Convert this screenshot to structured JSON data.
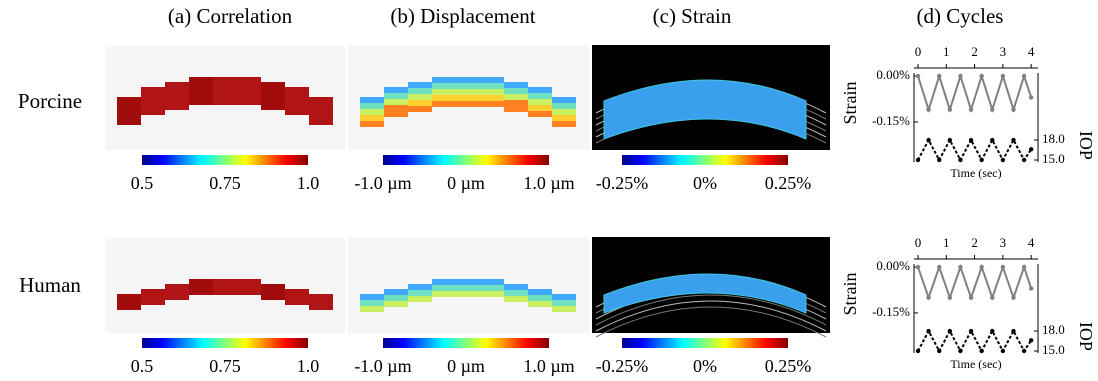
{
  "columns": [
    "(a) Correlation",
    "(b) Displacement",
    "(c) Strain",
    "(d) Cycles"
  ],
  "rows": [
    "Porcine",
    "Human"
  ],
  "colorbars": [
    {
      "labels": [
        "0.5",
        "0.75",
        "1.0"
      ]
    },
    {
      "labels": [
        "-1.0 µm",
        "0 µm",
        "1.0 µm"
      ]
    },
    {
      "labels": [
        "-0.25%",
        "0%",
        "0.25%"
      ]
    }
  ],
  "cycles": {
    "y_label": "Strain",
    "y2_label": "IOP",
    "x_label": "Time (sec)",
    "xlim": [
      0,
      4.1
    ],
    "xticks": [
      0,
      1,
      2,
      3,
      4
    ],
    "ylim": [
      -0.16,
      0.01
    ],
    "yticks": [
      {
        "value": 0,
        "label": "0.00%"
      },
      {
        "value": -0.15,
        "label": "-0.15%"
      }
    ],
    "y2lim": [
      14.7,
      18.5
    ],
    "y2ticks": [
      {
        "value": 18,
        "label": "18.0"
      },
      {
        "value": 15,
        "label": "15.0"
      }
    ],
    "strain_color": "#808080",
    "iop_color": "#000000",
    "plots": [
      {
        "x": [
          0,
          0.375,
          0.75,
          1.125,
          1.5,
          1.875,
          2.25,
          2.625,
          3.0,
          3.375,
          3.75,
          4.0
        ],
        "strain": [
          0,
          -0.11,
          0,
          -0.11,
          0,
          -0.11,
          0,
          -0.11,
          0,
          -0.11,
          0,
          -0.07
        ],
        "iop": [
          15,
          18,
          15,
          18,
          15,
          18,
          15,
          18,
          15,
          18,
          15,
          16.6
        ]
      },
      {
        "x": [
          0,
          0.375,
          0.75,
          1.125,
          1.5,
          1.875,
          2.25,
          2.625,
          3.0,
          3.375,
          3.75,
          4.0
        ],
        "strain": [
          0,
          -0.1,
          0,
          -0.1,
          0,
          -0.1,
          0,
          -0.1,
          0,
          -0.1,
          0,
          -0.07
        ],
        "iop": [
          15,
          18,
          15,
          18,
          15,
          18,
          15,
          18,
          15,
          18,
          15,
          16.6
        ]
      }
    ]
  }
}
